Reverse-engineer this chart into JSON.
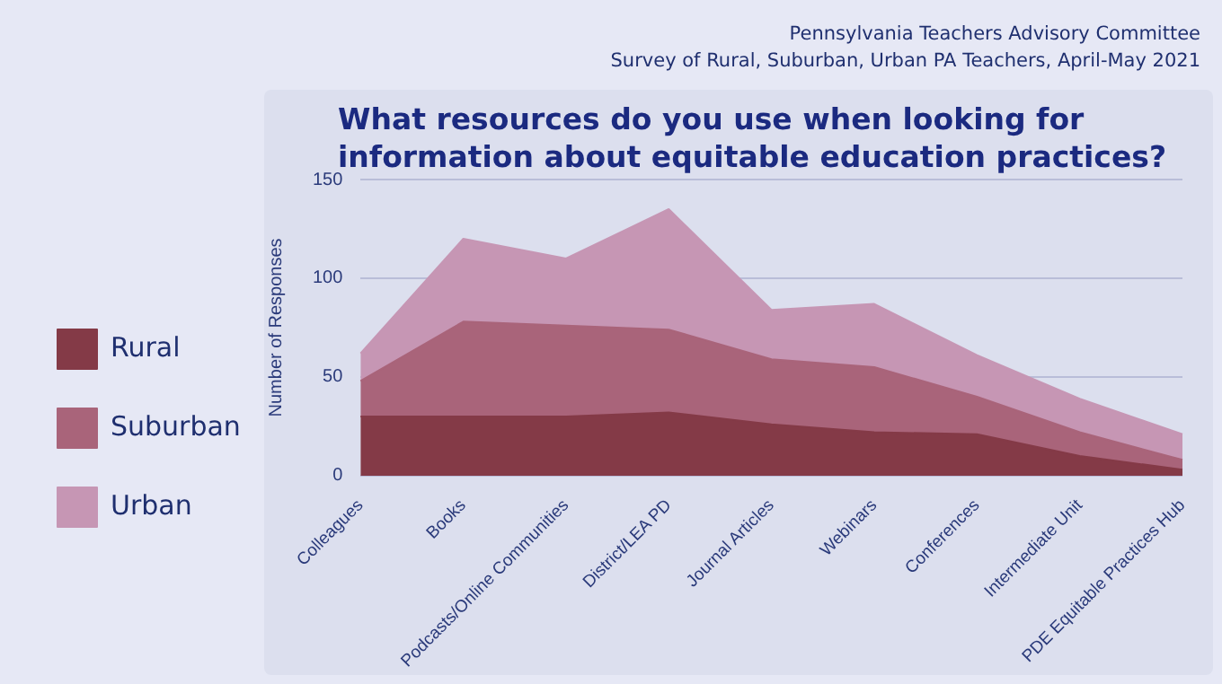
{
  "chart_data": {
    "type": "area",
    "title": "What resources do you use when looking for information about equitable education practices?",
    "ylabel": "Number of Responses",
    "annotations": [
      "Pennsylvania Teachers Advisory Committee",
      "Survey of Rural, Suburban, Urban PA Teachers, April-May 2021"
    ],
    "categories": [
      "Colleagues",
      "Books",
      "Podcasts/Online Communities",
      "District/LEA PD",
      "Journal Articles",
      "Webinars",
      "Conferences",
      "Intermediate Unit",
      "PDE Equitable Practices Hub"
    ],
    "stacked": true,
    "series": [
      {
        "name": "Rural",
        "color": "#843a47",
        "values": [
          30,
          30,
          30,
          32,
          26,
          22,
          21,
          10,
          3
        ]
      },
      {
        "name": "Suburban",
        "color": "#a9647a",
        "values": [
          18,
          48,
          46,
          42,
          33,
          33,
          19,
          12,
          5
        ]
      },
      {
        "name": "Urban",
        "color": "#c696b4",
        "values": [
          14,
          42,
          34,
          61,
          25,
          32,
          21,
          17,
          13
        ]
      }
    ],
    "ylim": [
      0,
      150
    ],
    "yticks": [
      0,
      50,
      100,
      150
    ],
    "grid": "y",
    "legend": "left",
    "marker": "none"
  }
}
